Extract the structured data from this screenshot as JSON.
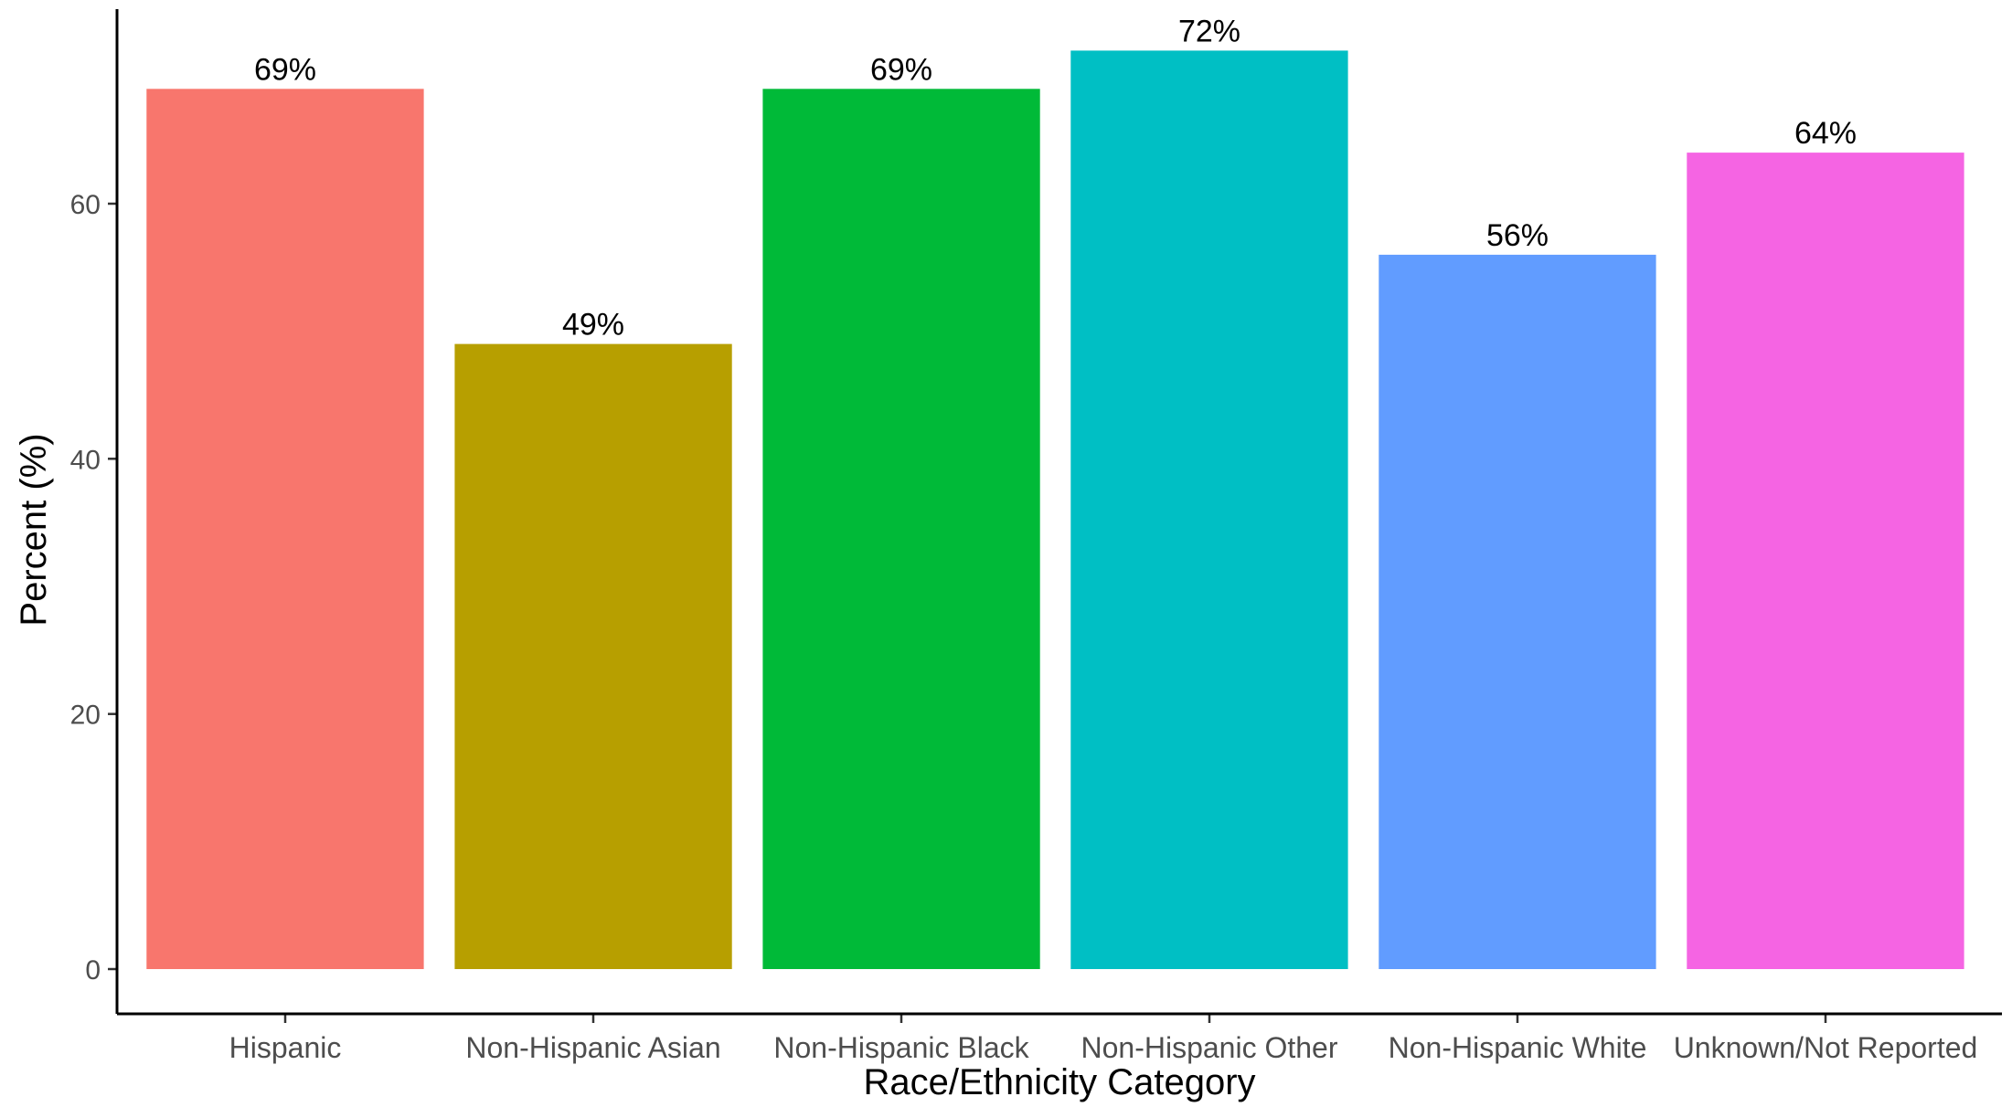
{
  "chart_data": {
    "type": "bar",
    "title": "",
    "xlabel": "Race/Ethnicity Category",
    "ylabel": "Percent (%)",
    "ylim": [
      0,
      75
    ],
    "yticks": [
      0,
      20,
      40,
      60
    ],
    "grid": false,
    "legend": "none",
    "categories": [
      "Hispanic",
      "Non-Hispanic Asian",
      "Non-Hispanic Black",
      "Non-Hispanic Other",
      "Non-Hispanic White",
      "Unknown/Not Reported"
    ],
    "values": [
      69,
      49,
      69,
      72,
      56,
      64
    ],
    "data_labels": [
      "69%",
      "49%",
      "69%",
      "72%",
      "56%",
      "64%"
    ],
    "colors": [
      "#F8766D",
      "#B79F00",
      "#00BA38",
      "#00BFC4",
      "#619CFF",
      "#F564E3"
    ]
  }
}
